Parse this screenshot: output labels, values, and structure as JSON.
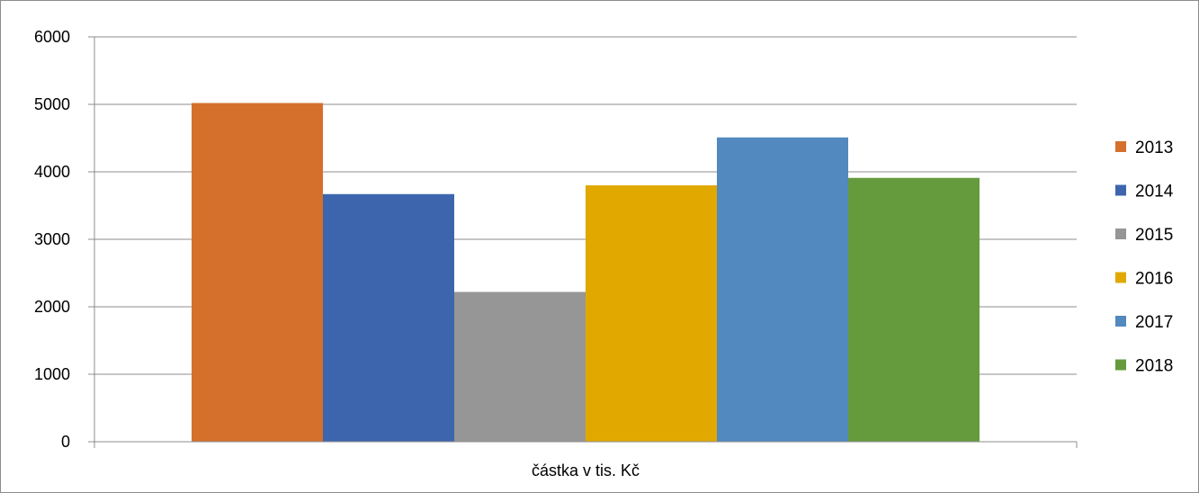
{
  "chart_data": {
    "type": "bar",
    "categories": [
      "částka v tis. Kč"
    ],
    "series": [
      {
        "name": "2013",
        "values": [
          5020
        ],
        "color": "#d4702c"
      },
      {
        "name": "2014",
        "values": [
          3670
        ],
        "color": "#3d65ae"
      },
      {
        "name": "2015",
        "values": [
          2220
        ],
        "color": "#969696"
      },
      {
        "name": "2016",
        "values": [
          3800
        ],
        "color": "#e1a900"
      },
      {
        "name": "2017",
        "values": [
          4510
        ],
        "color": "#5289be"
      },
      {
        "name": "2018",
        "values": [
          3910
        ],
        "color": "#659b3d"
      }
    ],
    "title": "",
    "xlabel": "",
    "ylabel": "",
    "ylim": [
      0,
      6000
    ],
    "yticks": [
      "0",
      "1000",
      "2000",
      "3000",
      "4000",
      "5000",
      "6000"
    ],
    "grid": true,
    "legend": "right"
  }
}
